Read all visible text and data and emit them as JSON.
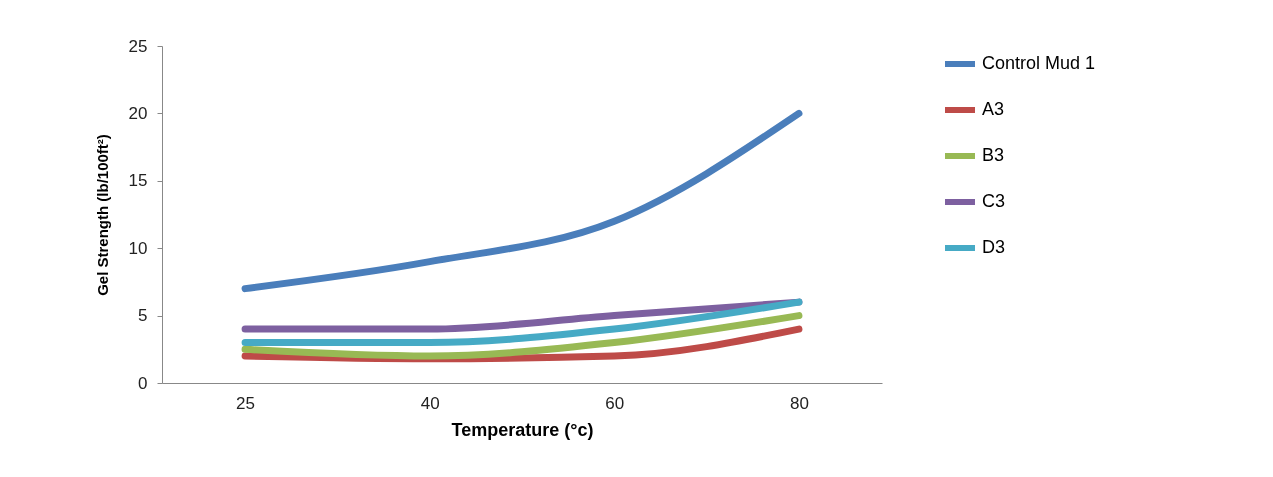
{
  "chart_data": {
    "type": "line",
    "xlabel": "Temperature (°c)",
    "ylabel": "Gel Strength (lb/100ft²)",
    "categories": [
      "25",
      "40",
      "60",
      "80"
    ],
    "ylim": [
      0,
      25
    ],
    "yticks": [
      0,
      5,
      10,
      15,
      20,
      25
    ],
    "grid": false,
    "legend": "right",
    "marker": "none",
    "line_style": "solid",
    "series": [
      {
        "name": "Control Mud 1",
        "color": "#4a7ebb",
        "values": [
          7,
          9,
          12,
          20
        ]
      },
      {
        "name": "A3",
        "color": "#be4b48",
        "values": [
          2,
          1.8,
          2,
          4
        ]
      },
      {
        "name": "B3",
        "color": "#98b954",
        "values": [
          2.5,
          2,
          3,
          5
        ]
      },
      {
        "name": "C3",
        "color": "#7d60a0",
        "values": [
          4,
          4,
          5,
          6
        ]
      },
      {
        "name": "D3",
        "color": "#46aac5",
        "values": [
          3,
          3,
          4,
          6
        ]
      }
    ]
  }
}
